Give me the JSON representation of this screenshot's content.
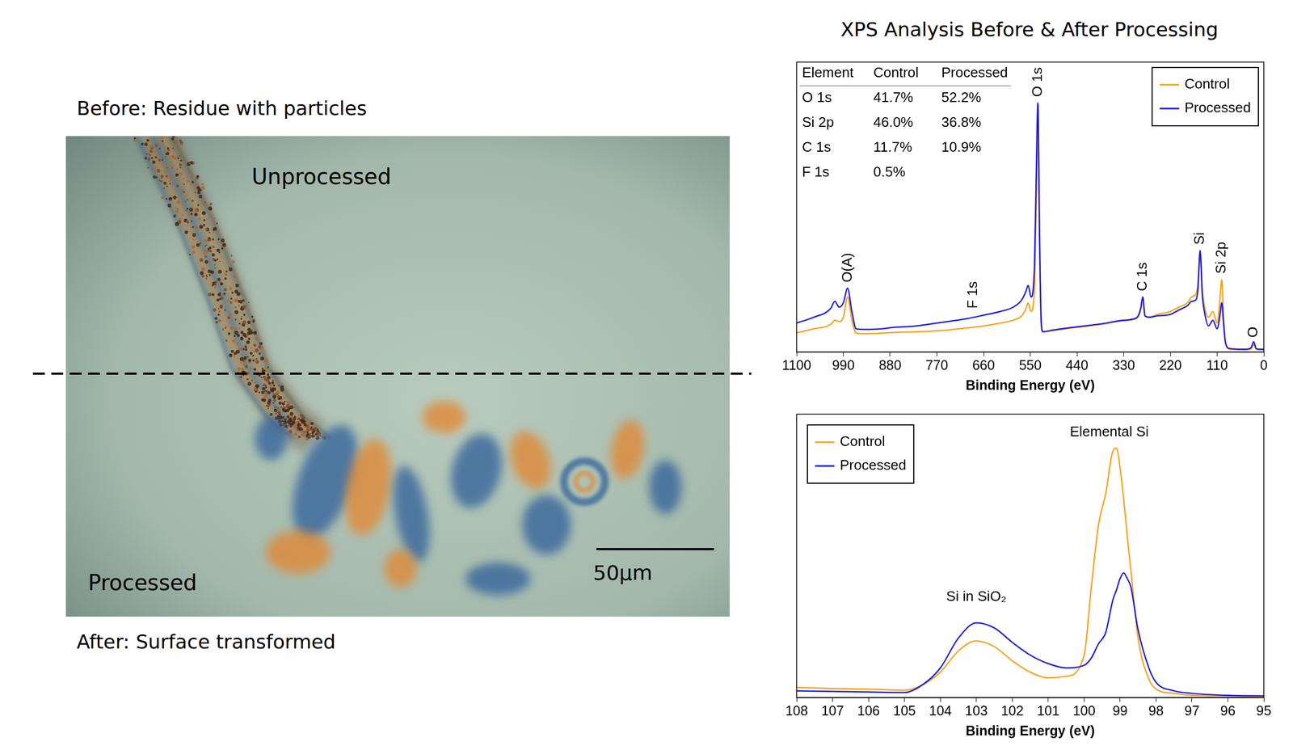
{
  "title": "XPS Analysis Before & After Processing",
  "micrograph": {
    "caption_top": "Before: Residue with particles",
    "caption_bottom": "After: Surface transformed",
    "region_labels": {
      "top": "Unprocessed",
      "bottom": "Processed"
    },
    "scale_bar": "50μm"
  },
  "chart_data": [
    {
      "type": "line",
      "xlabel": "Binding Energy (eV)",
      "xlim": [
        1100,
        0
      ],
      "xticks": [
        1100,
        990,
        880,
        770,
        660,
        550,
        440,
        330,
        220,
        110,
        0
      ],
      "ylim": [
        0,
        100
      ],
      "tick_labels": "x",
      "grid": false,
      "legend": "upper right",
      "x": [
        1100,
        1060,
        1020,
        1010,
        1000,
        990,
        980,
        970,
        960,
        940,
        900,
        880,
        820,
        770,
        700,
        660,
        620,
        590,
        570,
        560,
        555,
        548,
        540,
        536,
        532,
        528,
        524,
        520,
        500,
        440,
        380,
        330,
        300,
        290,
        285,
        280,
        270,
        250,
        220,
        200,
        180,
        170,
        160,
        155,
        150,
        145,
        140,
        130,
        120,
        110,
        104,
        99,
        95,
        90,
        80,
        60,
        40,
        30,
        24,
        18,
        10,
        0
      ],
      "series": [
        {
          "name": "Control",
          "color": "#f7a21b",
          "values": [
            6.6,
            8,
            9.5,
            11,
            10.5,
            12,
            19,
            11,
            6.6,
            6.3,
            6.5,
            6.7,
            7,
            7.3,
            8.3,
            9,
            10,
            11,
            12.5,
            15,
            17,
            14,
            22,
            50,
            78,
            35,
            9,
            7,
            7.3,
            8.5,
            9.6,
            10.8,
            11.5,
            14.5,
            19,
            12.5,
            12,
            13,
            14,
            15.5,
            17,
            19,
            20,
            24,
            35,
            22,
            16,
            12,
            14,
            10,
            17,
            25,
            13,
            3,
            1,
            0.8,
            0.8,
            1,
            2.5,
            1,
            0.8,
            0.8
          ]
        },
        {
          "name": "Processed",
          "color": "#1c1ce0",
          "values": [
            10,
            12,
            15,
            17.5,
            15.5,
            17,
            22,
            14,
            8,
            7.8,
            8,
            8.4,
            9,
            10,
            11.5,
            12.7,
            14,
            15.5,
            18,
            21,
            23,
            19,
            30,
            60,
            86,
            40,
            10,
            7,
            7.5,
            8.7,
            9.8,
            11,
            11.8,
            15,
            19,
            12.5,
            12,
            12.5,
            13,
            14.5,
            16,
            17.5,
            18,
            22,
            35,
            20,
            14,
            9,
            11,
            8,
            12,
            17,
            10,
            3,
            1.2,
            1,
            1,
            1.5,
            3.6,
            1.2,
            1,
            1
          ]
        }
      ],
      "annotations": [
        {
          "text": "O(A)",
          "x": 980,
          "y": 24
        },
        {
          "text": "F 1s",
          "x": 685,
          "y": 15
        },
        {
          "text": "O 1s",
          "x": 532,
          "y": 88
        },
        {
          "text": "C 1s",
          "x": 285,
          "y": 21
        },
        {
          "text": "Si",
          "x": 150,
          "y": 37
        },
        {
          "text": "Si 2p",
          "x": 99,
          "y": 27
        },
        {
          "text": "O",
          "x": 24,
          "y": 5
        }
      ],
      "table": {
        "columns": [
          "Element",
          "Control",
          "Processed"
        ],
        "rows": [
          [
            "O 1s",
            "41.7%",
            "52.2%"
          ],
          [
            "Si 2p",
            "46.0%",
            "36.8%"
          ],
          [
            "C 1s",
            "11.7%",
            "10.9%"
          ],
          [
            "F 1s",
            "0.5%",
            null
          ]
        ]
      }
    },
    {
      "type": "line",
      "xlabel": "Binding Energy (eV)",
      "xlim": [
        108,
        95
      ],
      "xticks": [
        108,
        107,
        106,
        105,
        104,
        103,
        102,
        101,
        100,
        99,
        98,
        97,
        96,
        95
      ],
      "ylim": [
        0,
        100
      ],
      "tick_labels": "x",
      "grid": false,
      "legend": "upper left",
      "x": [
        108,
        107,
        106,
        105,
        104.5,
        104,
        103.5,
        103,
        102.5,
        102,
        101.5,
        101,
        100.5,
        100,
        99.8,
        99.6,
        99.4,
        99.2,
        99.1,
        99,
        98.9,
        98.8,
        98.7,
        98.5,
        98.2,
        98,
        97.5,
        97,
        96,
        95
      ],
      "series": [
        {
          "name": "Control",
          "color": "#f7a21b",
          "values": [
            3.6,
            3.2,
            3,
            2.6,
            4.5,
            9,
            16.5,
            20,
            18,
            13,
            9,
            7,
            7.5,
            15,
            39,
            61,
            72,
            87,
            88,
            81,
            70,
            57,
            45,
            21,
            6.6,
            3,
            1.5,
            0.8,
            0.5,
            0.3
          ]
        },
        {
          "name": "Processed",
          "color": "#1c1ce0",
          "values": [
            2.4,
            2.2,
            2,
            1.8,
            4.5,
            10.5,
            21,
            26.4,
            24.6,
            19.5,
            15,
            12,
            10.5,
            11.4,
            14,
            19,
            23,
            34.5,
            38,
            42,
            44,
            42,
            39,
            24,
            10.5,
            5.4,
            2.4,
            1.5,
            0.8,
            0.6
          ]
        }
      ],
      "annotations": [
        {
          "text": "Elemental Si",
          "x": 99.3,
          "y": 91
        },
        {
          "text": "Si in SiO₂",
          "x": 103,
          "y": 33
        }
      ]
    }
  ]
}
